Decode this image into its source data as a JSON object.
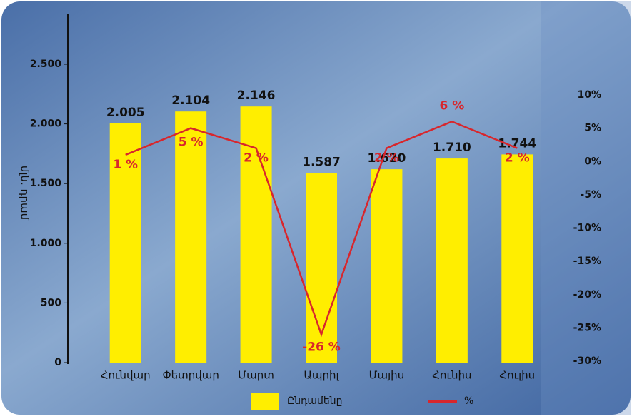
{
  "chart_data": {
    "type": "bar-line",
    "y_axis_label": "մլն. դրամ",
    "categories": [
      "Հունվար",
      "Փետրվար",
      "Մարտ",
      "Ապրիլ",
      "Մայիս",
      "Հունիս",
      "Հուլիս"
    ],
    "series": [
      {
        "name": "Ընդամենը",
        "type": "bar",
        "color": "#ffee00",
        "values": [
          2005,
          2104,
          2146,
          1587,
          1620,
          1710,
          1744
        ],
        "value_labels": [
          "2.005",
          "2.104",
          "2.146",
          "1.587",
          "1.620",
          "1.710",
          "1.744"
        ]
      },
      {
        "name": "%",
        "type": "line",
        "axis": "y2",
        "color": "#d8262c",
        "values": [
          1,
          5,
          2,
          -26,
          2,
          6,
          2
        ],
        "value_labels": [
          "1 %",
          "5 %",
          "2 %",
          "-26 %",
          "2 %",
          "6 %",
          "2 %"
        ]
      }
    ],
    "ylim": [
      0,
      2500
    ],
    "yticks": [
      0,
      500,
      {
        "value": 1000,
        "label": "1.000"
      },
      {
        "value": 1500,
        "label": "1.500"
      },
      {
        "value": 2000,
        "label": "2.000"
      },
      {
        "value": 2500,
        "label": "2.500"
      }
    ],
    "y2lim": [
      -30,
      10
    ],
    "y2ticks": [
      {
        "value": 10,
        "label": "10%"
      },
      {
        "value": 5,
        "label": "5%"
      },
      {
        "value": 0,
        "label": "0%"
      },
      {
        "value": -5,
        "label": "-5%"
      },
      {
        "value": -10,
        "label": "-10%"
      },
      {
        "value": -15,
        "label": "-15%"
      },
      {
        "value": -20,
        "label": "-20%"
      },
      {
        "value": -25,
        "label": "-25%"
      },
      {
        "value": -30,
        "label": "-30%"
      }
    ],
    "grid": false
  }
}
